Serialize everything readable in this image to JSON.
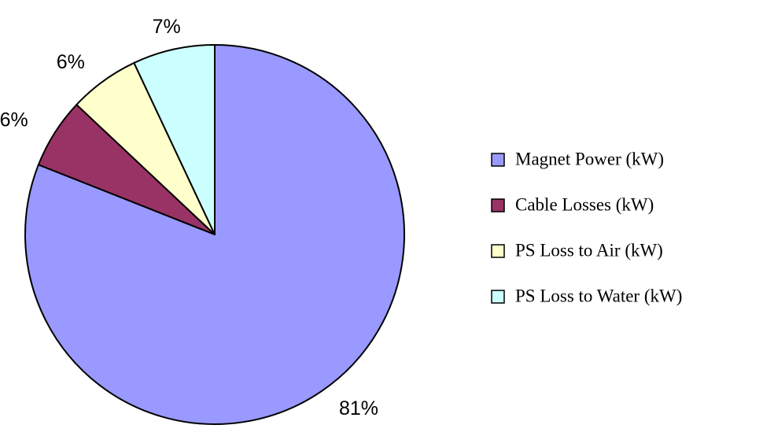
{
  "chart_data": {
    "type": "pie",
    "categories": [
      "Magnet Power (kW)",
      "Cable Losses (kW)",
      "PS Loss to Air (kW)",
      "PS Loss to Water (kW)"
    ],
    "values": [
      81,
      6,
      6,
      7
    ],
    "value_labels": [
      "81%",
      "6%",
      "6%",
      "7%"
    ],
    "colors": [
      "#9999ff",
      "#993366",
      "#ffffcc",
      "#ccffff"
    ],
    "legend": "right"
  }
}
